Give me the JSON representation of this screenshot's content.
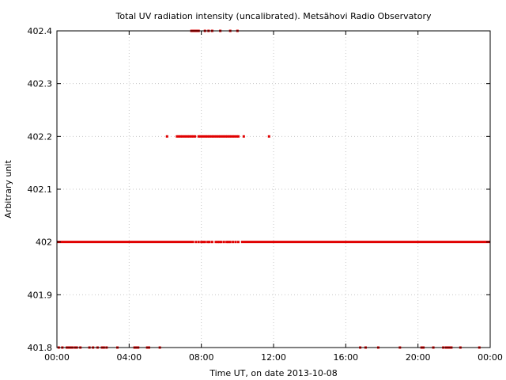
{
  "chart_data": {
    "type": "scatter",
    "title": "Total UV radiation intensity (uncalibrated). Metsähovi Radio Observatory",
    "xlabel": "Time UT, on date 2013-10-08",
    "ylabel": "Arbitrary unit",
    "x_ticks": [
      "00:00",
      "04:00",
      "08:00",
      "12:00",
      "16:00",
      "20:00",
      "00:00"
    ],
    "y_ticks": [
      "401.8",
      "401.9",
      "402",
      "402.1",
      "402.2",
      "402.3",
      "402.4"
    ],
    "xlim_hours": [
      0,
      24
    ],
    "ylim": [
      401.8,
      402.4
    ],
    "grid": true,
    "marker_color": "#e00000",
    "series": [
      {
        "level": 402.0,
        "continuous_ranges_hours": [
          [
            0.0,
            7.6
          ],
          [
            10.2,
            24.0
          ]
        ],
        "sparse_points_hours": [
          7.7,
          7.85,
          8.0,
          8.1,
          8.2,
          8.35,
          8.45,
          8.6,
          8.8,
          8.9,
          9.0,
          9.1,
          9.25,
          9.4,
          9.5,
          9.6,
          9.75,
          9.9,
          10.05
        ]
      },
      {
        "level": 402.2,
        "points_hours": [
          6.1,
          6.65,
          6.75,
          6.85,
          6.95,
          7.05,
          7.15,
          7.25,
          7.35,
          7.45,
          7.55,
          7.65,
          7.85,
          7.95,
          8.05,
          8.15,
          8.25,
          8.35,
          8.45,
          8.55,
          8.65,
          8.75,
          8.85,
          8.95,
          9.05,
          9.15,
          9.25,
          9.35,
          9.45,
          9.55,
          9.65,
          9.75,
          9.85,
          9.95,
          10.05,
          10.35,
          11.75
        ]
      },
      {
        "level": 402.4,
        "points_hours": [
          7.45,
          7.55,
          7.65,
          7.75,
          7.85,
          8.2,
          8.4,
          8.6,
          9.05,
          9.6,
          10.0
        ]
      },
      {
        "level": 401.8,
        "points_hours": [
          0.1,
          0.3,
          0.55,
          0.65,
          0.75,
          0.85,
          1.0,
          1.1,
          1.3,
          1.8,
          2.0,
          2.25,
          2.5,
          2.6,
          2.75,
          3.35,
          4.3,
          4.4,
          4.5,
          5.0,
          5.1,
          5.7,
          16.8,
          17.1,
          17.8,
          19.0,
          20.2,
          20.3,
          20.85,
          21.4,
          21.55,
          21.65,
          21.75,
          21.85,
          22.35,
          23.4
        ]
      }
    ]
  }
}
